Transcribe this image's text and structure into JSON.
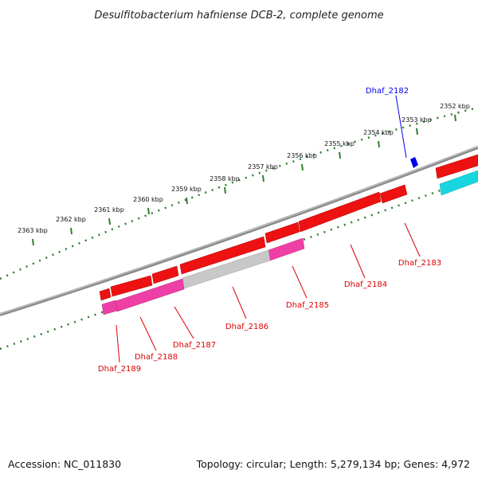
{
  "title": "Desulfitobacterium hafniense DCB-2, complete genome",
  "accession": "Accession: NC_011830",
  "summary": "Topology: circular; Length: 5,279,134 bp; Genes: 4,972",
  "colors": {
    "backbone": "#8a8a8a",
    "ticks": "#2f7f2f",
    "forward_gene": "#ee1111",
    "reverse_magenta": "#ee3fa6",
    "reverse_grey": "#c8c8c8",
    "cyan": "#18d6e0",
    "highlight": "#0000ee",
    "label_red": "#dd0000"
  },
  "ticks": [
    {
      "label": "2352 kbp"
    },
    {
      "label": "2353 kbp"
    },
    {
      "label": "2354 kbp"
    },
    {
      "label": "2355 kbp"
    },
    {
      "label": "2356 kbp"
    },
    {
      "label": "2357 kbp"
    },
    {
      "label": "2358 kbp"
    },
    {
      "label": "2359 kbp"
    },
    {
      "label": "2360 kbp"
    },
    {
      "label": "2361 kbp"
    },
    {
      "label": "2362 kbp"
    },
    {
      "label": "2363 kbp"
    }
  ],
  "genes": [
    {
      "label": "Dhaf_2182",
      "color": "highlight"
    },
    {
      "label": "Dhaf_2183",
      "color": "label_red"
    },
    {
      "label": "Dhaf_2184",
      "color": "label_red"
    },
    {
      "label": "Dhaf_2185",
      "color": "label_red"
    },
    {
      "label": "Dhaf_2186",
      "color": "label_red"
    },
    {
      "label": "Dhaf_2187",
      "color": "label_red"
    },
    {
      "label": "Dhaf_2188",
      "color": "label_red"
    },
    {
      "label": "Dhaf_2189",
      "color": "label_red"
    }
  ]
}
